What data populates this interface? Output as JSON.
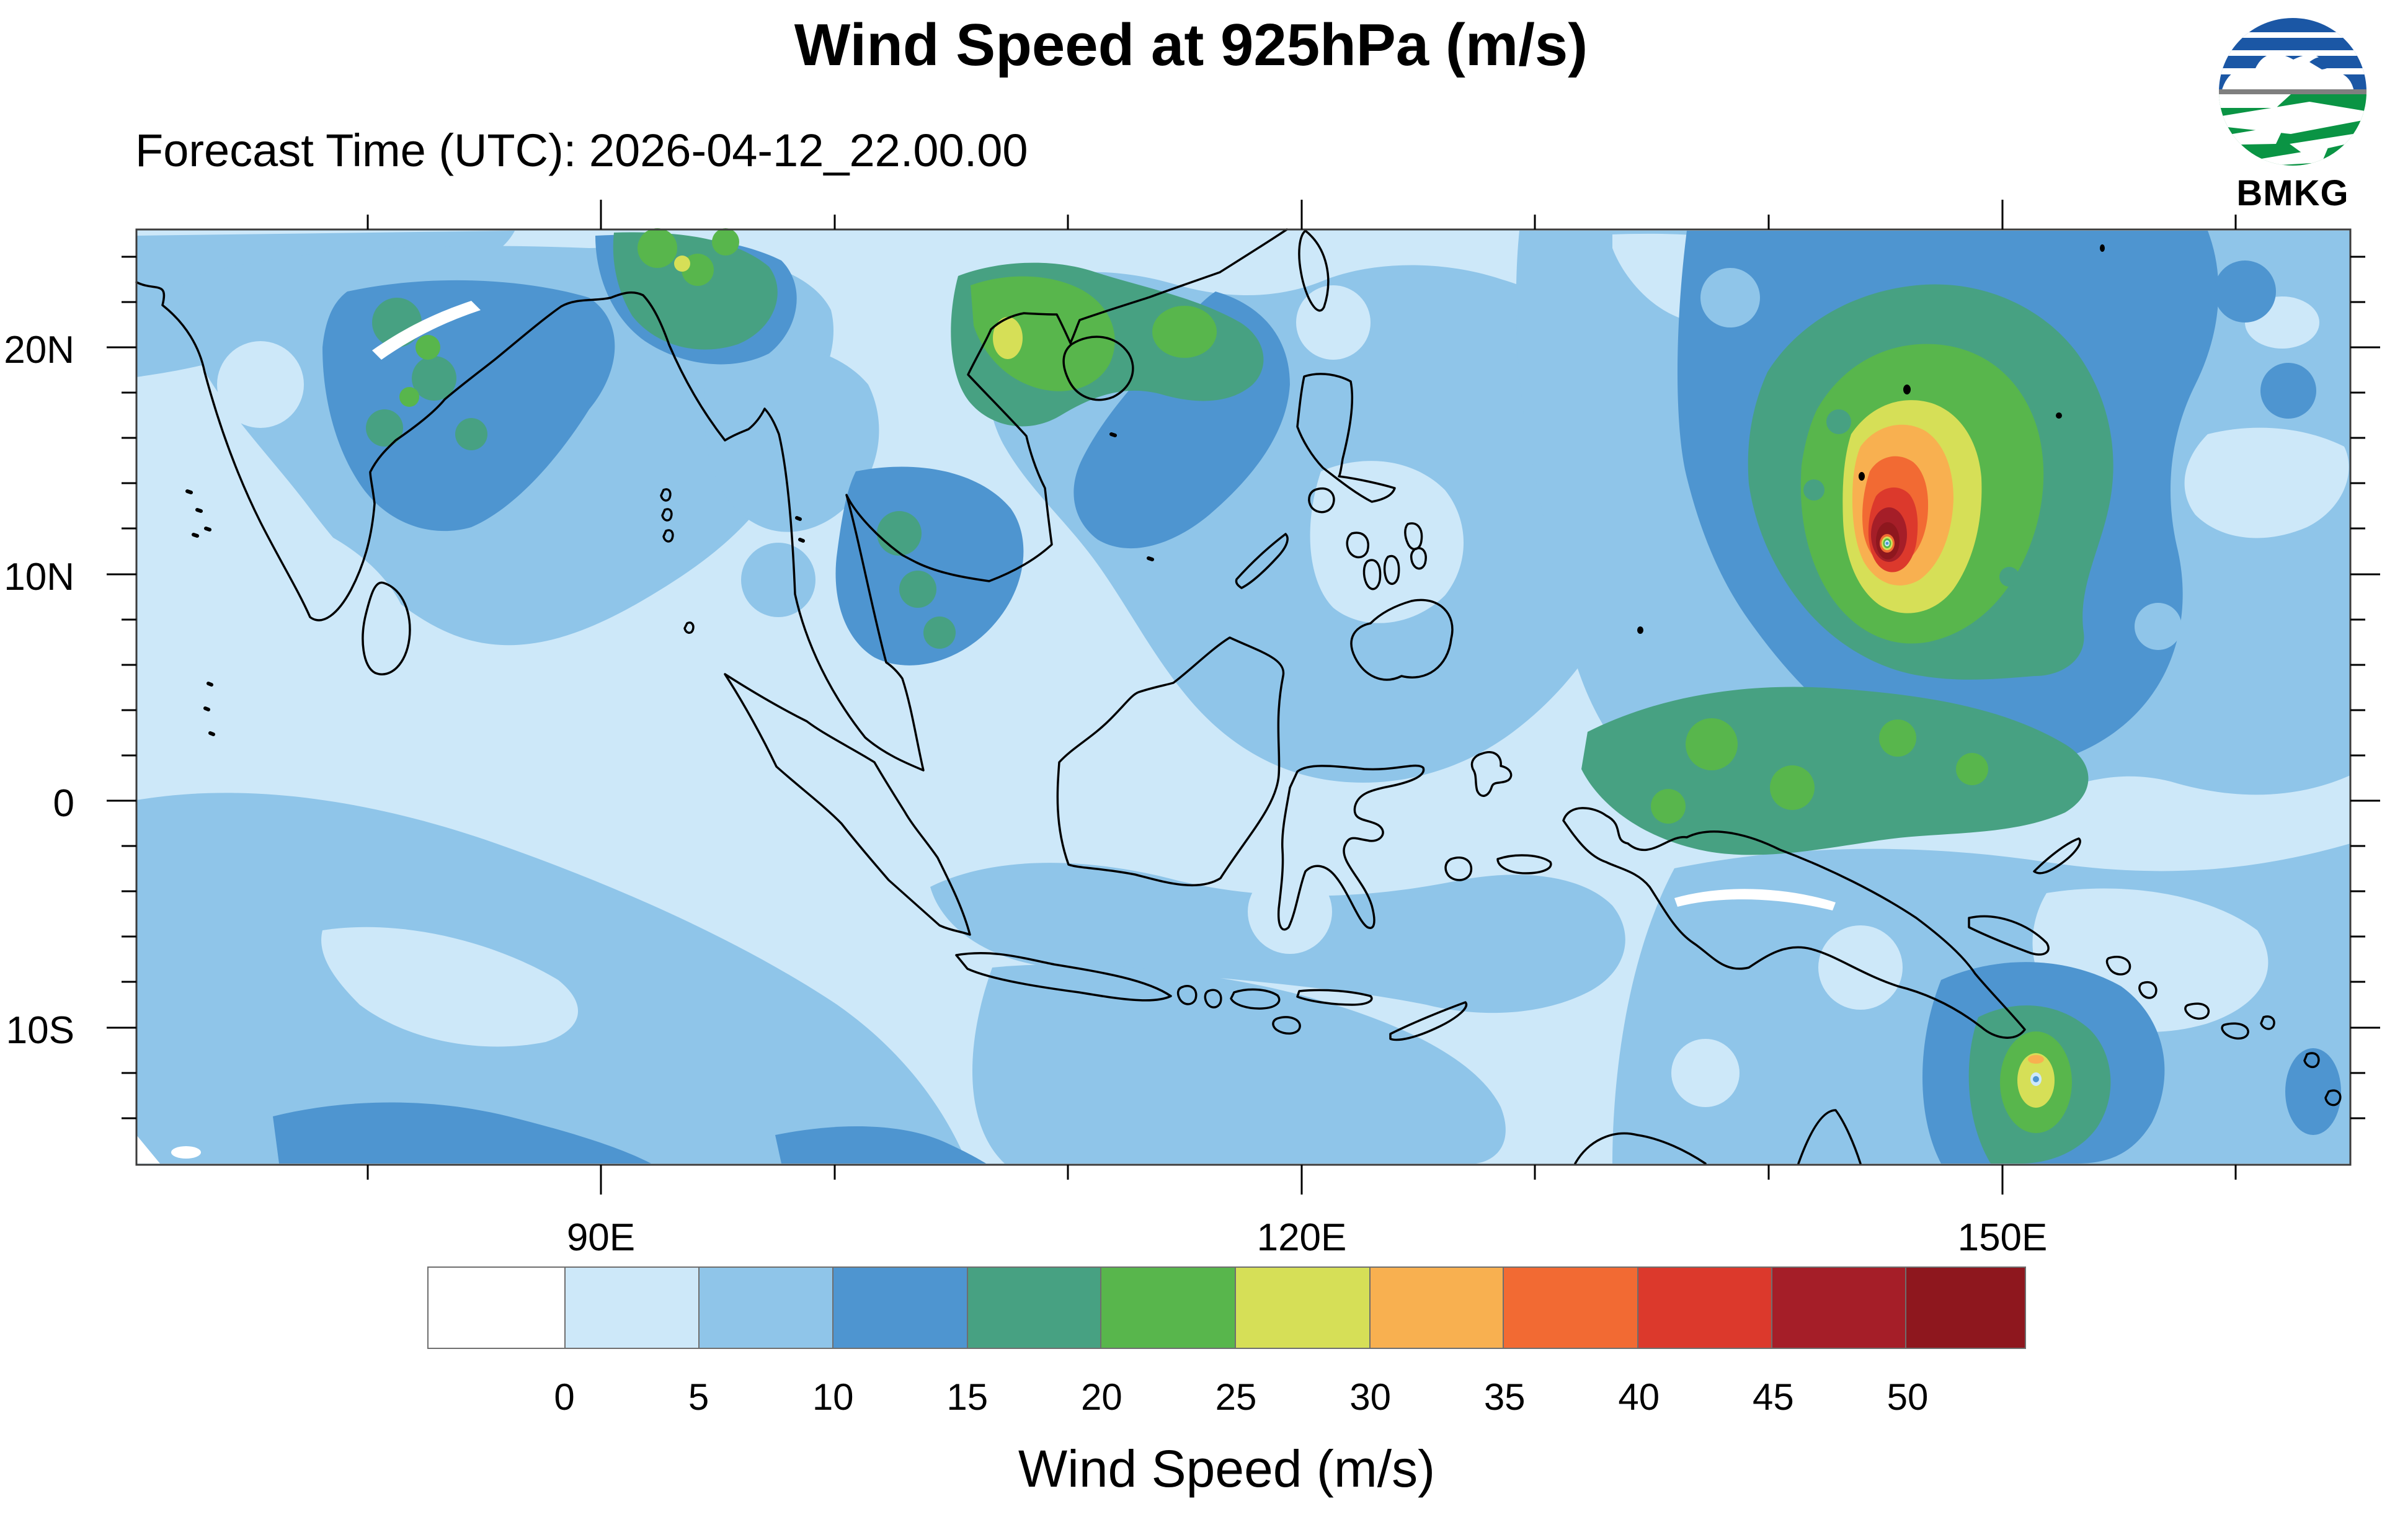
{
  "header": {
    "title": "Wind Speed at 925hPa (m/s)",
    "subtitle": "Forecast Time (UTC): 2026-04-12_22.00.00",
    "logo_text": "BMKG"
  },
  "map": {
    "y_axis_labels": [
      "20N",
      "10N",
      "0",
      "10S"
    ],
    "x_axis_labels": [
      "90E",
      "120E",
      "150E"
    ],
    "notable_features": {
      "primary_typhoon": "intense vortex near 145E 11N, peak wind > 50 m/s with calm eye",
      "secondary_cyclone": "weaker vortex near 151E 12S, peak wind 30-35 m/s",
      "high_wind_band": "15-20 m/s band between typhoon and New Guinea north coast",
      "land_patches": "15-25 m/s patches over NE India and northern Vietnam / Hainan"
    }
  },
  "colorbar": {
    "title": "Wind Speed (m/s)",
    "tick_labels": [
      "0",
      "5",
      "10",
      "15",
      "20",
      "25",
      "30",
      "35",
      "40",
      "45",
      "50"
    ],
    "colors": [
      "#ffffff",
      "#cde8f9",
      "#8fc5e9",
      "#4e95d0",
      "#47a182",
      "#58b64c",
      "#d6df57",
      "#f8b050",
      "#f26a33",
      "#dc392c",
      "#a51e28",
      "#8e171e"
    ],
    "units": "m/s",
    "level_min": 0,
    "level_max": 50,
    "level_step": 5
  },
  "logo_colors": {
    "blue": "#1b57a5",
    "green": "#0a9444",
    "gray": "#7f7f7f"
  }
}
